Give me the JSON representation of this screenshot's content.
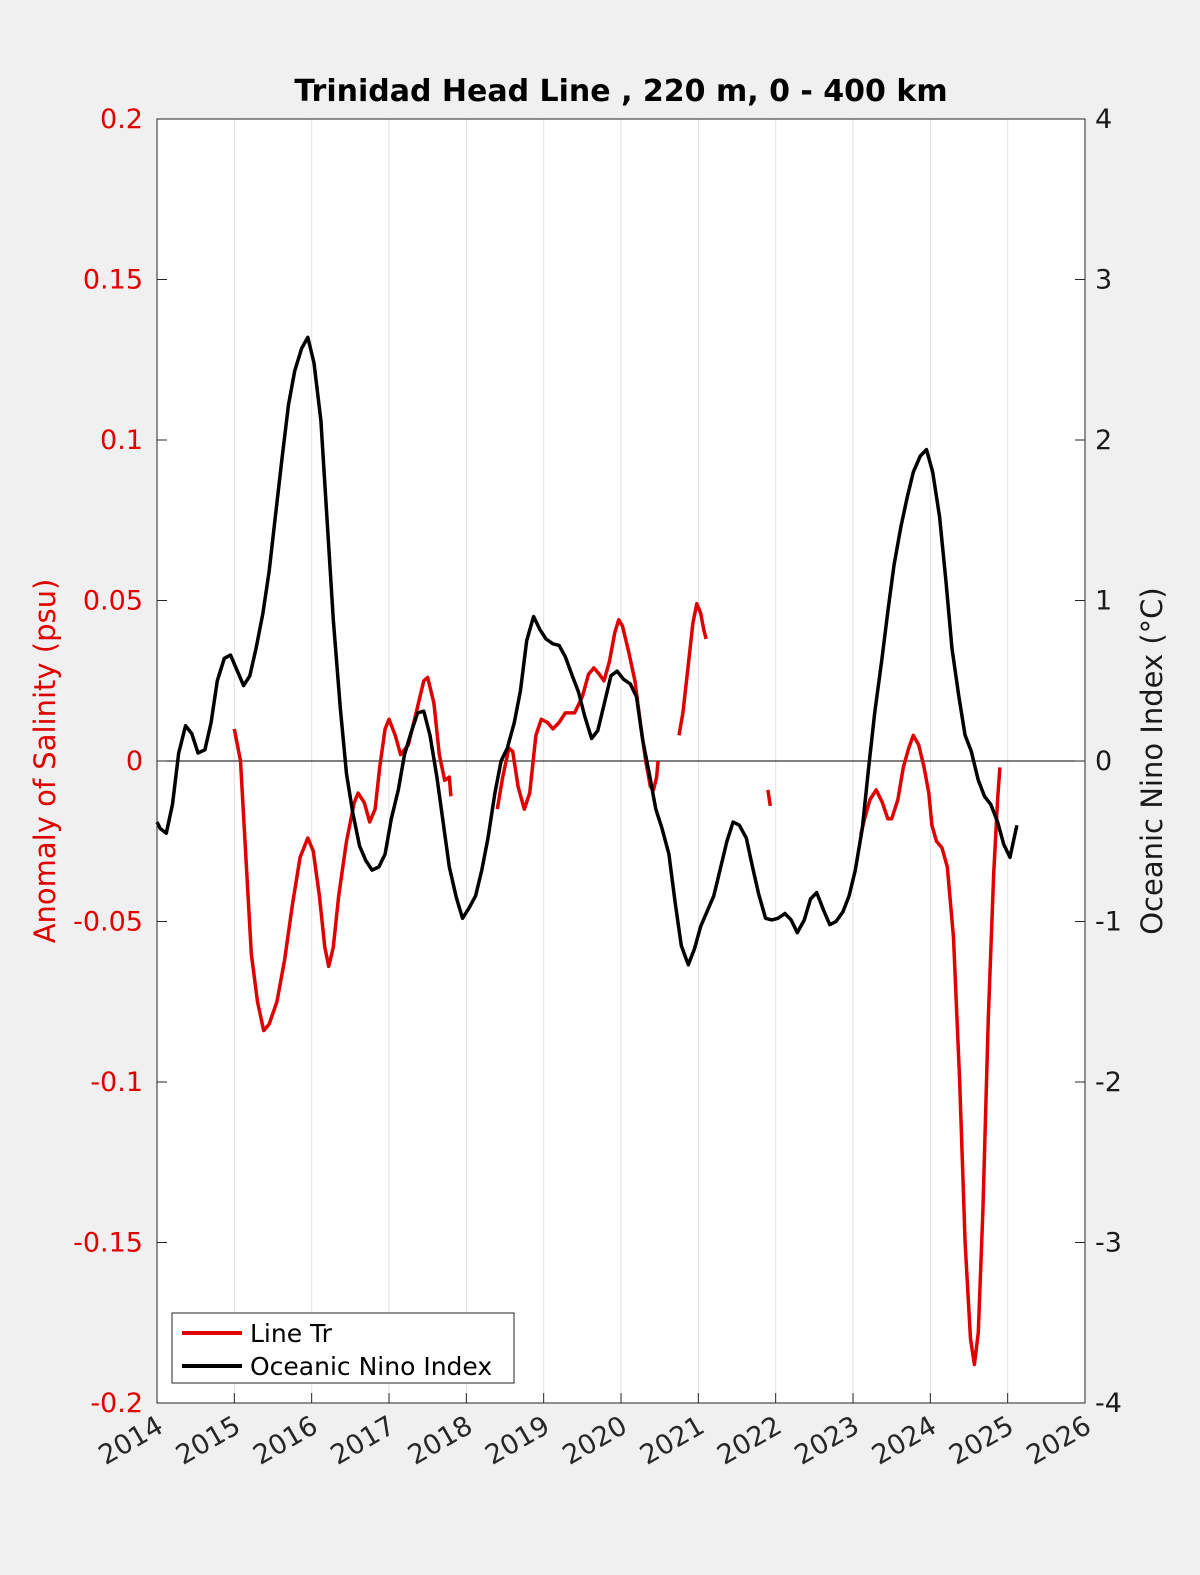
{
  "chart_data": {
    "type": "line",
    "title": "Trinidad Head Line , 220 m, 0 - 400 km",
    "ylabel_left": "Anomaly of Salinity (psu)",
    "ylabel_right": "Oceanic Nino Index (°C)",
    "xlim": [
      2014,
      2026
    ],
    "ylim_left": [
      -0.2,
      0.2
    ],
    "ylim_right": [
      -4,
      4
    ],
    "x_ticks": [
      "2014",
      "2015",
      "2016",
      "2017",
      "2018",
      "2019",
      "2020",
      "2021",
      "2022",
      "2023",
      "2024",
      "2025",
      "2026"
    ],
    "y_left_ticks": [
      "0.2",
      "0.15",
      "0.1",
      "0.05",
      "0",
      "-0.05",
      "-0.1",
      "-0.15",
      "-0.2"
    ],
    "y_right_ticks": [
      "4",
      "3",
      "2",
      "1",
      "0",
      "-1",
      "-2",
      "-3",
      "-4"
    ],
    "grid": "vertical",
    "zero_line": true,
    "legend_position": "bottom-left",
    "colors": {
      "salinity": "#e00000",
      "oni": "#000000",
      "left_axis": "#e00000",
      "right_axis": "#1a1a1a"
    },
    "series": [
      {
        "name": "Line Tr",
        "axis": "left",
        "segments": [
          [
            [
              2015.0,
              0.01
            ],
            [
              2015.08,
              0.0
            ],
            [
              2015.15,
              -0.03
            ],
            [
              2015.22,
              -0.06
            ],
            [
              2015.3,
              -0.075
            ],
            [
              2015.38,
              -0.084
            ],
            [
              2015.45,
              -0.082
            ],
            [
              2015.55,
              -0.075
            ],
            [
              2015.65,
              -0.062
            ],
            [
              2015.75,
              -0.045
            ],
            [
              2015.85,
              -0.03
            ],
            [
              2015.95,
              -0.024
            ],
            [
              2016.02,
              -0.028
            ],
            [
              2016.1,
              -0.042
            ],
            [
              2016.17,
              -0.058
            ],
            [
              2016.22,
              -0.064
            ],
            [
              2016.28,
              -0.058
            ],
            [
              2016.35,
              -0.042
            ],
            [
              2016.45,
              -0.025
            ],
            [
              2016.55,
              -0.013
            ],
            [
              2016.6,
              -0.01
            ],
            [
              2016.68,
              -0.013
            ],
            [
              2016.75,
              -0.019
            ],
            [
              2016.82,
              -0.015
            ],
            [
              2016.88,
              -0.002
            ],
            [
              2016.95,
              0.01
            ],
            [
              2017.0,
              0.013
            ],
            [
              2017.08,
              0.008
            ],
            [
              2017.15,
              0.002
            ],
            [
              2017.25,
              0.005
            ],
            [
              2017.35,
              0.015
            ],
            [
              2017.45,
              0.025
            ],
            [
              2017.5,
              0.026
            ],
            [
              2017.58,
              0.018
            ],
            [
              2017.65,
              0.002
            ],
            [
              2017.72,
              -0.006
            ],
            [
              2017.78,
              -0.005
            ],
            [
              2017.8,
              -0.011
            ]
          ],
          [
            [
              2018.4,
              -0.015
            ],
            [
              2018.47,
              -0.005
            ],
            [
              2018.55,
              0.004
            ],
            [
              2018.6,
              0.003
            ],
            [
              2018.67,
              -0.008
            ],
            [
              2018.75,
              -0.015
            ],
            [
              2018.82,
              -0.01
            ],
            [
              2018.9,
              0.008
            ],
            [
              2018.97,
              0.013
            ],
            [
              2019.05,
              0.012
            ],
            [
              2019.12,
              0.01
            ],
            [
              2019.2,
              0.012
            ],
            [
              2019.28,
              0.015
            ],
            [
              2019.4,
              0.015
            ],
            [
              2019.5,
              0.02
            ],
            [
              2019.58,
              0.027
            ],
            [
              2019.65,
              0.029
            ],
            [
              2019.72,
              0.027
            ],
            [
              2019.78,
              0.025
            ],
            [
              2019.85,
              0.031
            ],
            [
              2019.92,
              0.04
            ],
            [
              2019.97,
              0.044
            ],
            [
              2020.02,
              0.042
            ],
            [
              2020.1,
              0.034
            ],
            [
              2020.18,
              0.025
            ],
            [
              2020.25,
              0.012
            ],
            [
              2020.32,
              0.0
            ],
            [
              2020.38,
              -0.008
            ],
            [
              2020.42,
              -0.009
            ],
            [
              2020.46,
              -0.005
            ],
            [
              2020.48,
              0.0
            ]
          ],
          [
            [
              2020.75,
              0.008
            ],
            [
              2020.8,
              0.015
            ],
            [
              2020.87,
              0.03
            ],
            [
              2020.93,
              0.043
            ],
            [
              2020.98,
              0.049
            ],
            [
              2021.03,
              0.046
            ],
            [
              2021.07,
              0.041
            ],
            [
              2021.1,
              0.038
            ]
          ],
          [
            [
              2021.9,
              -0.009
            ],
            [
              2021.93,
              -0.014
            ]
          ],
          [
            [
              2023.1,
              -0.023
            ],
            [
              2023.15,
              -0.018
            ],
            [
              2023.22,
              -0.012
            ],
            [
              2023.3,
              -0.009
            ],
            [
              2023.38,
              -0.013
            ],
            [
              2023.45,
              -0.018
            ],
            [
              2023.5,
              -0.018
            ],
            [
              2023.58,
              -0.012
            ],
            [
              2023.65,
              -0.002
            ],
            [
              2023.72,
              0.004
            ],
            [
              2023.78,
              0.008
            ],
            [
              2023.85,
              0.005
            ],
            [
              2023.92,
              -0.002
            ],
            [
              2023.98,
              -0.01
            ],
            [
              2024.02,
              -0.02
            ],
            [
              2024.08,
              -0.025
            ],
            [
              2024.15,
              -0.027
            ],
            [
              2024.22,
              -0.033
            ],
            [
              2024.3,
              -0.055
            ],
            [
              2024.38,
              -0.1
            ],
            [
              2024.45,
              -0.15
            ],
            [
              2024.52,
              -0.18
            ],
            [
              2024.57,
              -0.188
            ],
            [
              2024.62,
              -0.178
            ],
            [
              2024.68,
              -0.14
            ],
            [
              2024.75,
              -0.08
            ],
            [
              2024.82,
              -0.035
            ],
            [
              2024.87,
              -0.012
            ],
            [
              2024.9,
              -0.002
            ]
          ]
        ]
      },
      {
        "name": "Oceanic Nino Index",
        "axis": "right",
        "segments": [
          [
            [
              2014.0,
              -0.38
            ],
            [
              2014.04,
              -0.42
            ],
            [
              2014.12,
              -0.45
            ],
            [
              2014.2,
              -0.27
            ],
            [
              2014.28,
              0.05
            ],
            [
              2014.37,
              0.22
            ],
            [
              2014.45,
              0.17
            ],
            [
              2014.53,
              0.05
            ],
            [
              2014.62,
              0.07
            ],
            [
              2014.7,
              0.24
            ],
            [
              2014.78,
              0.5
            ],
            [
              2014.87,
              0.64
            ],
            [
              2014.95,
              0.66
            ],
            [
              2015.03,
              0.57
            ],
            [
              2015.12,
              0.47
            ],
            [
              2015.2,
              0.53
            ],
            [
              2015.28,
              0.7
            ],
            [
              2015.37,
              0.92
            ],
            [
              2015.45,
              1.18
            ],
            [
              2015.53,
              1.52
            ],
            [
              2015.62,
              1.9
            ],
            [
              2015.7,
              2.22
            ],
            [
              2015.78,
              2.43
            ],
            [
              2015.87,
              2.57
            ],
            [
              2015.95,
              2.64
            ],
            [
              2016.03,
              2.48
            ],
            [
              2016.12,
              2.12
            ],
            [
              2016.2,
              1.5
            ],
            [
              2016.28,
              0.88
            ],
            [
              2016.37,
              0.33
            ],
            [
              2016.45,
              -0.08
            ],
            [
              2016.53,
              -0.32
            ],
            [
              2016.62,
              -0.53
            ],
            [
              2016.7,
              -0.62
            ],
            [
              2016.78,
              -0.68
            ],
            [
              2016.87,
              -0.66
            ],
            [
              2016.95,
              -0.58
            ],
            [
              2017.03,
              -0.36
            ],
            [
              2017.12,
              -0.18
            ],
            [
              2017.2,
              0.04
            ],
            [
              2017.28,
              0.17
            ],
            [
              2017.37,
              0.3
            ],
            [
              2017.45,
              0.31
            ],
            [
              2017.53,
              0.16
            ],
            [
              2017.62,
              -0.1
            ],
            [
              2017.7,
              -0.38
            ],
            [
              2017.78,
              -0.66
            ],
            [
              2017.87,
              -0.85
            ],
            [
              2017.95,
              -0.98
            ],
            [
              2018.03,
              -0.92
            ],
            [
              2018.12,
              -0.84
            ],
            [
              2018.2,
              -0.68
            ],
            [
              2018.28,
              -0.48
            ],
            [
              2018.37,
              -0.2
            ],
            [
              2018.45,
              0.0
            ],
            [
              2018.53,
              0.08
            ],
            [
              2018.62,
              0.24
            ],
            [
              2018.7,
              0.44
            ],
            [
              2018.78,
              0.75
            ],
            [
              2018.87,
              0.9
            ],
            [
              2018.95,
              0.82
            ],
            [
              2019.03,
              0.76
            ],
            [
              2019.12,
              0.73
            ],
            [
              2019.2,
              0.72
            ],
            [
              2019.28,
              0.65
            ],
            [
              2019.37,
              0.53
            ],
            [
              2019.45,
              0.43
            ],
            [
              2019.53,
              0.28
            ],
            [
              2019.62,
              0.14
            ],
            [
              2019.7,
              0.19
            ],
            [
              2019.78,
              0.35
            ],
            [
              2019.87,
              0.53
            ],
            [
              2019.95,
              0.56
            ],
            [
              2020.03,
              0.51
            ],
            [
              2020.12,
              0.48
            ],
            [
              2020.2,
              0.4
            ],
            [
              2020.28,
              0.13
            ],
            [
              2020.37,
              -0.09
            ],
            [
              2020.45,
              -0.3
            ],
            [
              2020.53,
              -0.42
            ],
            [
              2020.62,
              -0.58
            ],
            [
              2020.7,
              -0.88
            ],
            [
              2020.78,
              -1.15
            ],
            [
              2020.87,
              -1.27
            ],
            [
              2020.95,
              -1.17
            ],
            [
              2021.03,
              -1.03
            ],
            [
              2021.12,
              -0.93
            ],
            [
              2021.2,
              -0.84
            ],
            [
              2021.28,
              -0.68
            ],
            [
              2021.37,
              -0.5
            ],
            [
              2021.45,
              -0.38
            ],
            [
              2021.53,
              -0.4
            ],
            [
              2021.62,
              -0.48
            ],
            [
              2021.7,
              -0.66
            ],
            [
              2021.78,
              -0.83
            ],
            [
              2021.87,
              -0.98
            ],
            [
              2021.95,
              -0.99
            ],
            [
              2022.03,
              -0.98
            ],
            [
              2022.12,
              -0.95
            ],
            [
              2022.2,
              -0.99
            ],
            [
              2022.28,
              -1.07
            ],
            [
              2022.37,
              -0.99
            ],
            [
              2022.45,
              -0.86
            ],
            [
              2022.53,
              -0.82
            ],
            [
              2022.62,
              -0.93
            ],
            [
              2022.7,
              -1.02
            ],
            [
              2022.78,
              -1.0
            ],
            [
              2022.87,
              -0.94
            ],
            [
              2022.95,
              -0.84
            ],
            [
              2023.03,
              -0.68
            ],
            [
              2023.12,
              -0.42
            ],
            [
              2023.2,
              -0.05
            ],
            [
              2023.28,
              0.3
            ],
            [
              2023.37,
              0.62
            ],
            [
              2023.45,
              0.93
            ],
            [
              2023.53,
              1.22
            ],
            [
              2023.62,
              1.46
            ],
            [
              2023.7,
              1.64
            ],
            [
              2023.78,
              1.8
            ],
            [
              2023.87,
              1.9
            ],
            [
              2023.95,
              1.94
            ],
            [
              2024.03,
              1.8
            ],
            [
              2024.12,
              1.52
            ],
            [
              2024.2,
              1.13
            ],
            [
              2024.28,
              0.7
            ],
            [
              2024.37,
              0.4
            ],
            [
              2024.45,
              0.16
            ],
            [
              2024.53,
              0.06
            ],
            [
              2024.62,
              -0.12
            ],
            [
              2024.7,
              -0.22
            ],
            [
              2024.78,
              -0.27
            ],
            [
              2024.87,
              -0.38
            ],
            [
              2024.95,
              -0.52
            ],
            [
              2025.03,
              -0.6
            ],
            [
              2025.12,
              -0.4
            ]
          ]
        ]
      }
    ]
  }
}
